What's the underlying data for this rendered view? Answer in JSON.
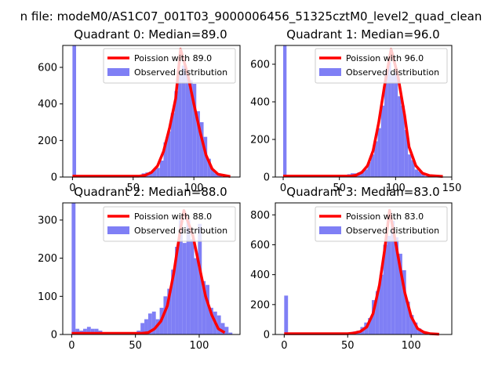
{
  "suptitle": "n file: modeM0/AS1C07_001T03_9000006456_51325cztM0_level2_quad_clean",
  "colors": {
    "hist": "#7f7ff5",
    "fit": "#ff0000",
    "axis": "#000000"
  },
  "chart_data": [
    {
      "type": "bar",
      "title": "Quadrant 0: Median=89.0",
      "xlabel": "",
      "ylabel": "",
      "xlim": [
        -8,
        138
      ],
      "ylim": [
        0,
        720
      ],
      "xticks": [
        0,
        50,
        100
      ],
      "yticks": [
        0,
        200,
        400,
        600
      ],
      "legend": {
        "placement": "top-right",
        "entries": [
          "Poission with 89.0",
          "Observed distribution"
        ]
      },
      "bin_width": 3,
      "series": [
        {
          "name": "Observed distribution",
          "type": "histogram",
          "x": [
            0,
            9,
            27,
            57,
            60,
            63,
            66,
            69,
            72,
            75,
            78,
            81,
            84,
            87,
            90,
            93,
            96,
            99,
            102,
            105,
            108,
            111,
            114,
            117,
            120
          ],
          "values": [
            720,
            5,
            5,
            20,
            25,
            30,
            40,
            50,
            90,
            190,
            250,
            350,
            470,
            560,
            610,
            580,
            530,
            510,
            360,
            300,
            220,
            100,
            40,
            20,
            10
          ]
        },
        {
          "name": "Poission with 89.0",
          "type": "line",
          "x": [
            0,
            20,
            45,
            55,
            60,
            65,
            70,
            75,
            80,
            85,
            89,
            95,
            100,
            105,
            110,
            115,
            120,
            130
          ],
          "values": [
            5,
            5,
            5,
            5,
            10,
            25,
            60,
            140,
            270,
            430,
            700,
            560,
            400,
            250,
            120,
            45,
            15,
            3
          ]
        }
      ]
    },
    {
      "type": "bar",
      "title": "Quadrant 1: Median=96.0",
      "xlabel": "",
      "ylabel": "",
      "xlim": [
        -7,
        150
      ],
      "ylim": [
        0,
        700
      ],
      "xticks": [
        0,
        50,
        100,
        150
      ],
      "yticks": [
        0,
        200,
        400,
        600
      ],
      "legend": {
        "placement": "top-right",
        "entries": [
          "Poission with 96.0",
          "Observed distribution"
        ]
      },
      "bin_width": 3,
      "series": [
        {
          "name": "Observed distribution",
          "type": "histogram",
          "x": [
            0,
            9,
            15,
            51,
            54,
            57,
            60,
            63,
            66,
            69,
            72,
            75,
            78,
            81,
            84,
            87,
            90,
            93,
            96,
            99,
            102,
            105,
            108,
            111,
            114,
            117,
            120,
            123,
            126
          ],
          "values": [
            700,
            8,
            5,
            5,
            10,
            15,
            20,
            20,
            25,
            25,
            40,
            80,
            120,
            190,
            260,
            380,
            560,
            610,
            540,
            560,
            430,
            380,
            250,
            120,
            90,
            40,
            30,
            15,
            5
          ]
        },
        {
          "name": "Poission with 96.0",
          "type": "line",
          "x": [
            0,
            20,
            50,
            60,
            65,
            70,
            75,
            80,
            85,
            90,
            96,
            102,
            108,
            112,
            118,
            124,
            130,
            142
          ],
          "values": [
            5,
            5,
            5,
            5,
            10,
            25,
            60,
            140,
            290,
            480,
            680,
            540,
            330,
            160,
            60,
            20,
            8,
            3
          ]
        }
      ]
    },
    {
      "type": "bar",
      "title": "Quadrant 2: Median=88.0",
      "xlabel": "",
      "ylabel": "",
      "xlim": [
        -7,
        132
      ],
      "ylim": [
        0,
        345
      ],
      "xticks": [
        0,
        50,
        100
      ],
      "yticks": [
        0,
        100,
        200,
        300
      ],
      "legend": {
        "placement": "top-right",
        "entries": [
          "Poission with 88.0",
          "Observed distribution"
        ]
      },
      "bin_width": 3,
      "series": [
        {
          "name": "Observed distribution",
          "type": "histogram",
          "x": [
            0,
            3,
            6,
            9,
            12,
            15,
            18,
            21,
            48,
            51,
            54,
            57,
            60,
            63,
            66,
            69,
            72,
            75,
            78,
            81,
            84,
            87,
            90,
            93,
            96,
            99,
            102,
            105,
            108,
            111,
            114,
            117,
            120,
            123
          ],
          "values": [
            345,
            15,
            10,
            15,
            20,
            15,
            15,
            10,
            5,
            10,
            30,
            40,
            55,
            60,
            40,
            70,
            100,
            120,
            170,
            230,
            300,
            240,
            300,
            250,
            200,
            290,
            140,
            130,
            70,
            60,
            50,
            30,
            20,
            5
          ]
        },
        {
          "name": "Poission with 88.0",
          "type": "line",
          "x": [
            0,
            20,
            45,
            55,
            60,
            65,
            70,
            75,
            80,
            85,
            88,
            95,
            100,
            105,
            110,
            115,
            120
          ],
          "values": [
            3,
            3,
            3,
            3,
            5,
            15,
            35,
            75,
            160,
            270,
            325,
            260,
            180,
            100,
            50,
            15,
            5
          ]
        }
      ]
    },
    {
      "type": "bar",
      "title": "Quadrant 3: Median=83.0",
      "xlabel": "",
      "ylabel": "",
      "xlim": [
        -7,
        132
      ],
      "ylim": [
        0,
        880
      ],
      "xticks": [
        0,
        50,
        100
      ],
      "yticks": [
        0,
        200,
        400,
        600,
        800
      ],
      "legend": {
        "placement": "top-right",
        "entries": [
          "Poission with 83.0",
          "Observed distribution"
        ]
      },
      "bin_width": 3,
      "series": [
        {
          "name": "Observed distribution",
          "type": "histogram",
          "x": [
            0,
            12,
            45,
            48,
            51,
            54,
            57,
            60,
            63,
            66,
            69,
            72,
            75,
            78,
            81,
            84,
            87,
            90,
            93,
            96,
            99,
            102,
            105,
            108,
            111,
            114
          ],
          "values": [
            260,
            10,
            5,
            10,
            15,
            20,
            25,
            50,
            80,
            110,
            230,
            290,
            400,
            600,
            660,
            760,
            650,
            540,
            430,
            220,
            130,
            80,
            40,
            20,
            10,
            5
          ]
        },
        {
          "name": "Poission with 83.0",
          "type": "line",
          "x": [
            0,
            20,
            40,
            50,
            55,
            60,
            65,
            70,
            75,
            79,
            83,
            87,
            91,
            95,
            100,
            105,
            110,
            115,
            122
          ],
          "values": [
            5,
            5,
            5,
            5,
            10,
            20,
            50,
            140,
            330,
            560,
            830,
            650,
            460,
            280,
            120,
            40,
            15,
            5,
            2
          ]
        }
      ]
    }
  ]
}
